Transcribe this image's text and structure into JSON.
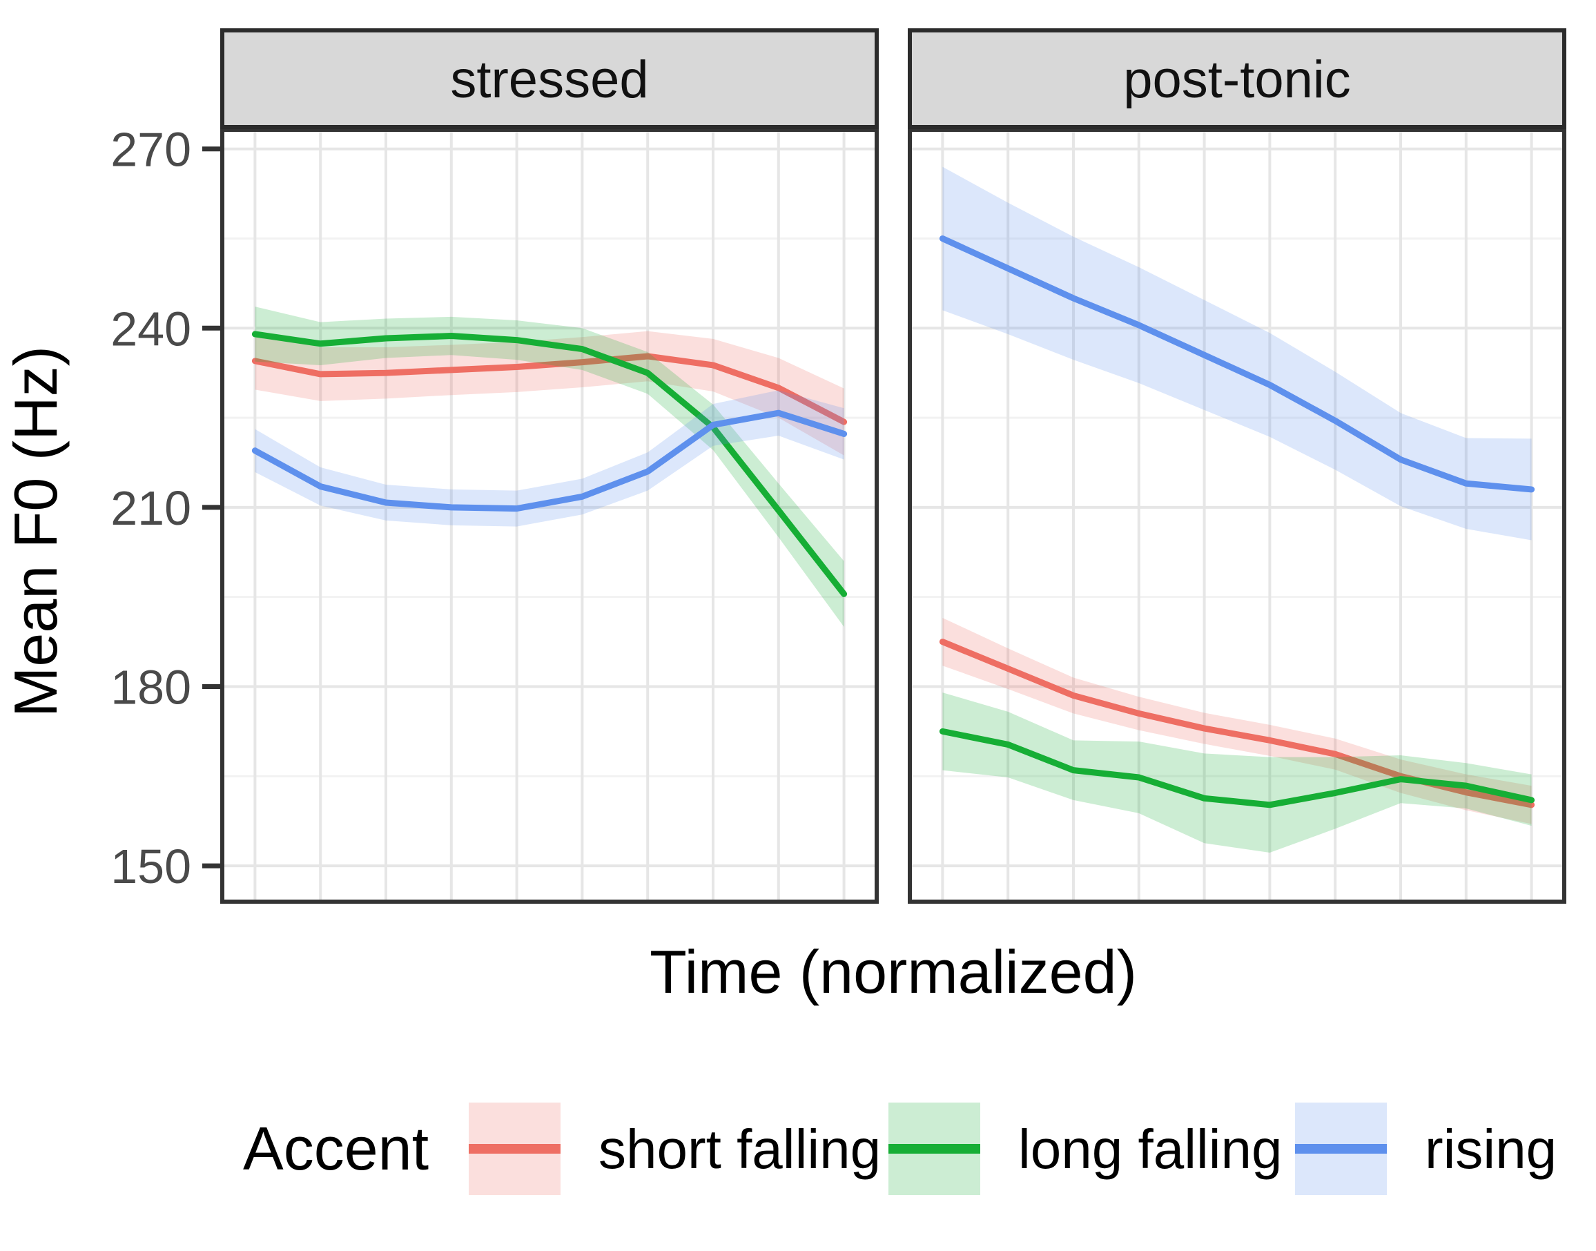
{
  "chart_data": {
    "type": "line",
    "title": "",
    "xlabel": "Time (normalized)",
    "ylabel": "Mean F0 (Hz)",
    "x": [
      1,
      2,
      3,
      4,
      5,
      6,
      7,
      8,
      9,
      10
    ],
    "ylim": [
      144,
      273.2
    ],
    "y_ticks": [
      150,
      180,
      210,
      240,
      270
    ],
    "y_minor_ticks": [
      165,
      195,
      225,
      255
    ],
    "x_tick_labels_shown": false,
    "grid": "major+minor",
    "legend_position": "bottom",
    "legend_title": "Accent",
    "facets": [
      {
        "key": "stressed",
        "label": "stressed"
      },
      {
        "key": "post_tonic",
        "label": "post-tonic"
      }
    ],
    "series": [
      {
        "name": "short falling",
        "slug": "short-falling",
        "color": "#ee6e63",
        "facets": {
          "stressed": {
            "mean": [
              234.5,
              232.3,
              232.5,
              233.0,
              233.5,
              234.3,
              235.3,
              233.8,
              230.0,
              224.3
            ],
            "ci_half_width": [
              4.8,
              4.5,
              4.3,
              4.2,
              4.2,
              4.2,
              4.2,
              4.4,
              5.0,
              5.6
            ]
          },
          "post_tonic": {
            "mean": [
              187.5,
              183.0,
              178.5,
              175.5,
              173.0,
              171.0,
              168.7,
              165.0,
              162.3,
              160.2
            ],
            "ci_half_width": [
              4.0,
              3.4,
              3.0,
              2.8,
              2.6,
              2.6,
              2.6,
              2.8,
              3.0,
              3.2
            ]
          }
        }
      },
      {
        "name": "long falling",
        "slug": "long-falling",
        "color": "#16ae35",
        "facets": {
          "stressed": {
            "mean": [
              239.0,
              237.4,
              238.3,
              238.7,
              238.0,
              236.5,
              232.5,
              223.4,
              209.5,
              195.5
            ],
            "ci_half_width": [
              4.6,
              3.6,
              3.3,
              3.2,
              3.3,
              3.5,
              3.5,
              3.8,
              4.5,
              5.5
            ]
          },
          "post_tonic": {
            "mean": [
              172.5,
              170.3,
              166.0,
              164.8,
              161.3,
              160.2,
              162.2,
              164.5,
              163.4,
              161.0
            ],
            "ci_half_width": [
              6.5,
              5.5,
              5.0,
              6.0,
              7.5,
              8.0,
              6.0,
              4.0,
              3.8,
              4.3
            ]
          }
        }
      },
      {
        "name": "rising",
        "slug": "rising",
        "color": "#5e90ed",
        "facets": {
          "stressed": {
            "mean": [
              219.5,
              213.5,
              210.8,
              210.0,
              209.8,
              211.8,
              216.0,
              223.8,
              225.8,
              222.3
            ],
            "ci_half_width": [
              3.6,
              3.2,
              3.0,
              3.0,
              3.0,
              3.0,
              3.2,
              3.5,
              3.8,
              4.3
            ]
          },
          "post_tonic": {
            "mean": [
              255.0,
              250.0,
              245.0,
              240.5,
              235.5,
              230.5,
              224.5,
              218.0,
              214.0,
              213.0
            ],
            "ci_half_width": [
              12.0,
              11.0,
              10.3,
              9.7,
              9.2,
              8.7,
              8.2,
              7.8,
              7.6,
              8.5
            ]
          }
        }
      }
    ],
    "theme": {
      "panel_background": "#ffffff",
      "grid_major": "#e6e6e6",
      "grid_minor": "#f2f2f2",
      "panel_border": "#333333",
      "strip_background": "#d8d8d8",
      "strip_border": "#2b2b2b",
      "tick_mark_color": "#333333",
      "tick_label_color": "#4a4a4a",
      "ribbon_opacity": 0.22
    }
  }
}
